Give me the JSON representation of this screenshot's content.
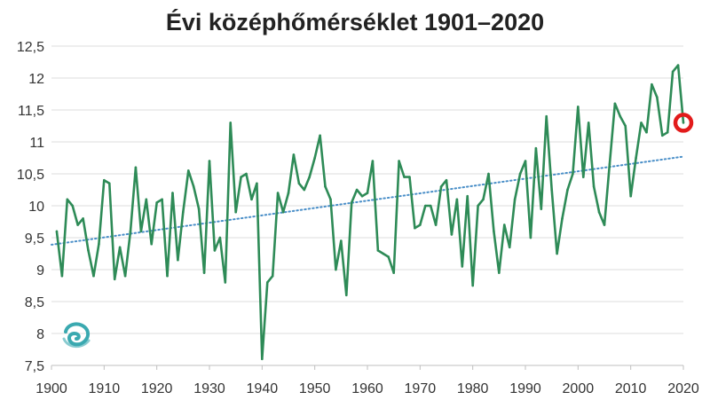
{
  "chart_data": {
    "type": "line",
    "title": "Évi középhőmérséklet 1901–2020",
    "xlim": [
      1900,
      2020
    ],
    "ylim": [
      7.5,
      12.5
    ],
    "x_ticks": [
      1900,
      1910,
      1920,
      1930,
      1940,
      1950,
      1960,
      1970,
      1980,
      1990,
      2000,
      2010,
      2020
    ],
    "y_ticks": [
      "7,5",
      "8",
      "8,5",
      "9",
      "9,5",
      "10",
      "10,5",
      "11",
      "11,5",
      "12",
      "12,5"
    ],
    "y_tick_values": [
      7.5,
      8,
      8.5,
      9,
      9.5,
      10,
      10.5,
      11,
      11.5,
      12,
      12.5
    ],
    "grid": "horizontal",
    "series": [
      {
        "color": "#2e8b57",
        "x": [
          1901,
          1902,
          1903,
          1904,
          1905,
          1906,
          1907,
          1908,
          1909,
          1910,
          1911,
          1912,
          1913,
          1914,
          1915,
          1916,
          1917,
          1918,
          1919,
          1920,
          1921,
          1922,
          1923,
          1924,
          1925,
          1926,
          1927,
          1928,
          1929,
          1930,
          1931,
          1932,
          1933,
          1934,
          1935,
          1936,
          1937,
          1938,
          1939,
          1940,
          1941,
          1942,
          1943,
          1944,
          1945,
          1946,
          1947,
          1948,
          1949,
          1950,
          1951,
          1952,
          1953,
          1954,
          1955,
          1956,
          1957,
          1958,
          1959,
          1960,
          1961,
          1962,
          1963,
          1964,
          1965,
          1966,
          1967,
          1968,
          1969,
          1970,
          1971,
          1972,
          1973,
          1974,
          1975,
          1976,
          1977,
          1978,
          1979,
          1980,
          1981,
          1982,
          1983,
          1984,
          1985,
          1986,
          1987,
          1988,
          1989,
          1990,
          1991,
          1992,
          1993,
          1994,
          1995,
          1996,
          1997,
          1998,
          1999,
          2000,
          2001,
          2002,
          2003,
          2004,
          2005,
          2006,
          2007,
          2008,
          2009,
          2010,
          2011,
          2012,
          2013,
          2014,
          2015,
          2016,
          2017,
          2018,
          2019,
          2020
        ],
        "values": [
          9.6,
          8.9,
          10.1,
          10.0,
          9.7,
          9.8,
          9.3,
          8.9,
          9.4,
          10.4,
          10.35,
          8.85,
          9.35,
          8.9,
          9.6,
          10.6,
          9.6,
          10.1,
          9.4,
          10.05,
          10.1,
          8.9,
          10.2,
          9.15,
          9.9,
          10.55,
          10.3,
          9.95,
          8.95,
          10.7,
          9.3,
          9.5,
          8.8,
          11.3,
          9.9,
          10.45,
          10.5,
          10.1,
          10.35,
          7.6,
          8.8,
          8.9,
          10.2,
          9.9,
          10.2,
          10.8,
          10.35,
          10.25,
          10.45,
          10.75,
          11.1,
          10.3,
          10.1,
          9.0,
          9.45,
          8.6,
          10.05,
          10.25,
          10.15,
          10.2,
          10.7,
          9.3,
          9.25,
          9.2,
          8.95,
          10.7,
          10.45,
          10.45,
          9.65,
          9.7,
          10.0,
          10.0,
          9.7,
          10.3,
          10.4,
          9.55,
          10.1,
          9.05,
          10.15,
          8.75,
          10.0,
          10.1,
          10.5,
          9.6,
          8.95,
          9.7,
          9.35,
          10.1,
          10.5,
          10.7,
          9.5,
          10.9,
          9.95,
          11.4,
          10.25,
          9.25,
          9.8,
          10.25,
          10.5,
          11.55,
          10.45,
          11.3,
          10.3,
          9.9,
          9.7,
          10.65,
          11.6,
          11.4,
          11.25,
          10.15,
          10.75,
          11.3,
          11.15,
          11.9,
          11.7,
          11.1,
          11.15,
          12.1,
          12.2,
          11.3
        ]
      }
    ],
    "trend": {
      "color": "#4a8fc8",
      "x": [
        1900,
        2020
      ],
      "values": [
        9.39,
        10.77
      ]
    },
    "highlight": {
      "x": 2020,
      "value": 11.3,
      "color": "#e21b1b"
    }
  },
  "logo": {
    "icon": "spiral-wave-logo-icon",
    "color": "#3aa9b0"
  }
}
